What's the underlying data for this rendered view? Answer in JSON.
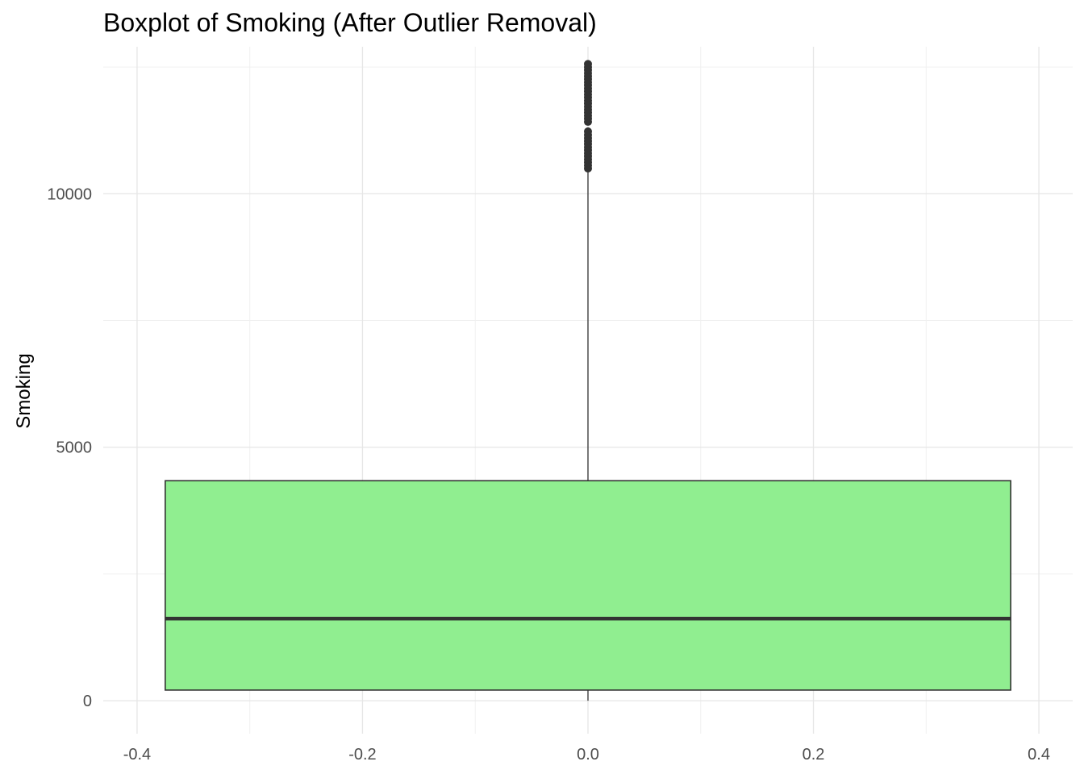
{
  "chart_data": {
    "type": "boxplot",
    "title": "Boxplot of Smoking (After Outlier Removal)",
    "xlabel": "",
    "ylabel": "Smoking",
    "xlim": [
      -0.43,
      0.43
    ],
    "ylim": [
      -650,
      12900
    ],
    "x_ticks": [
      -0.4,
      -0.2,
      0.0,
      0.2,
      0.4
    ],
    "x_tick_labels": [
      "-0.4",
      "-0.2",
      "0.0",
      "0.2",
      "0.4"
    ],
    "y_ticks": [
      0,
      5000,
      10000
    ],
    "y_tick_labels": [
      "0",
      "5000",
      "10000"
    ],
    "grid": true,
    "box": {
      "x_center": 0.0,
      "x_min": -0.375,
      "x_max": 0.375,
      "min": 0,
      "q1": 210,
      "median": 1620,
      "q3": 4340,
      "whisker_high": 10450,
      "fill": "#90ee90",
      "outliers": [
        10500,
        10560,
        10620,
        10680,
        10740,
        10800,
        10860,
        10920,
        10980,
        11040,
        11100,
        11160,
        11230,
        11420,
        11480,
        11540,
        11600,
        11660,
        11720,
        11780,
        11840,
        11900,
        11960,
        12020,
        12080,
        12140,
        12200,
        12260,
        12320,
        12380,
        12440,
        12500,
        12560
      ]
    }
  }
}
